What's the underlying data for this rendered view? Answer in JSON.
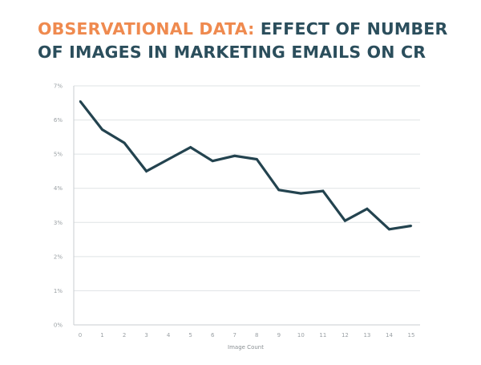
{
  "colors": {
    "title_accent": "#ef8a4f",
    "title_main": "#2b4e5c",
    "line": "#23434f",
    "grid": "#dfe3e5",
    "axis": "#c9ced1",
    "tick_text": "#9aa0a4"
  },
  "chart_data": {
    "type": "line",
    "title_accent": "OBSERVATIONAL DATA:",
    "title_main": "EFFECT OF NUMBER OF IMAGES IN MARKETING EMAILS ON CR",
    "xlabel": "Image Count",
    "ylabel": "",
    "x": [
      0,
      1,
      2,
      3,
      4,
      5,
      6,
      7,
      8,
      9,
      10,
      11,
      12,
      13,
      14,
      15
    ],
    "series": [
      {
        "values": [
          6.55,
          5.72,
          5.33,
          4.5,
          4.85,
          5.2,
          4.8,
          4.95,
          4.85,
          3.95,
          3.85,
          3.92,
          3.05,
          3.4,
          2.8,
          2.9
        ]
      }
    ],
    "ylim": [
      0,
      7
    ],
    "yticks": [
      "0%",
      "1%",
      "2%",
      "3%",
      "4%",
      "5%",
      "6%",
      "7%"
    ],
    "xticks": [
      "0",
      "1",
      "2",
      "3",
      "4",
      "5",
      "6",
      "7",
      "8",
      "9",
      "10",
      "11",
      "12",
      "13",
      "14",
      "15"
    ],
    "grid": "horizontal",
    "legend": "none"
  }
}
